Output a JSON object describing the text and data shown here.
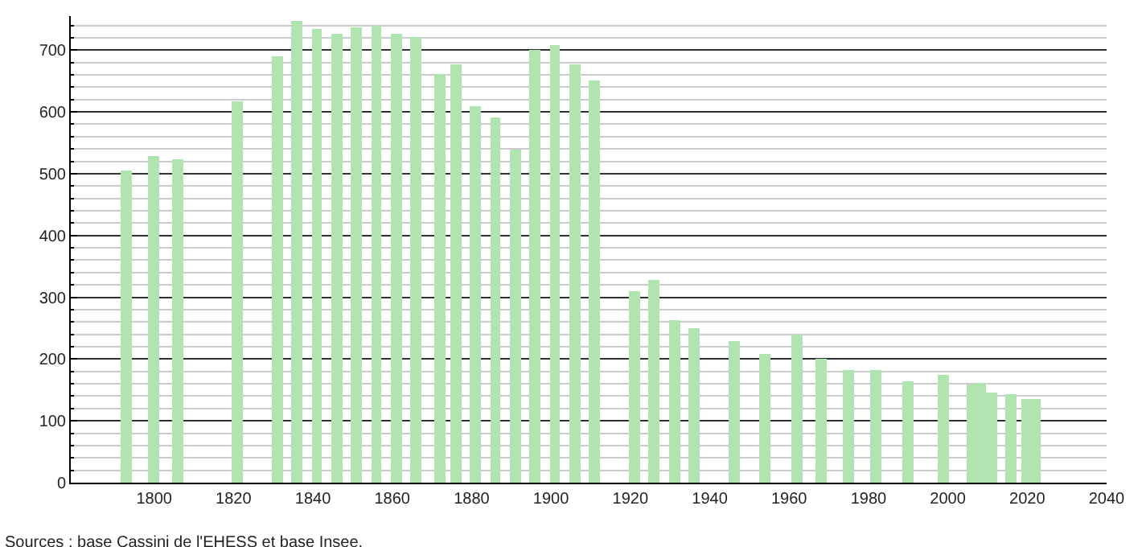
{
  "chart_data": {
    "type": "bar",
    "x": [
      1793,
      1800,
      1806,
      1821,
      1831,
      1836,
      1841,
      1846,
      1851,
      1856,
      1861,
      1866,
      1872,
      1876,
      1881,
      1886,
      1891,
      1896,
      1901,
      1906,
      1911,
      1921,
      1926,
      1931,
      1936,
      1946,
      1954,
      1962,
      1968,
      1975,
      1982,
      1990,
      1999,
      2006,
      2008,
      2011,
      2016,
      2020,
      2022
    ],
    "values": [
      505,
      529,
      523,
      617,
      690,
      748,
      735,
      727,
      737,
      740,
      727,
      722,
      660,
      676,
      610,
      592,
      540,
      700,
      709,
      677,
      651,
      310,
      328,
      263,
      249,
      229,
      208,
      240,
      200,
      181,
      181,
      165,
      174,
      160,
      162,
      145,
      143,
      136,
      135
    ],
    "color": "#b0e4b0",
    "xlim": [
      1779,
      2040
    ],
    "xticks": [
      1800,
      1820,
      1840,
      1860,
      1880,
      1900,
      1920,
      1940,
      1960,
      1980,
      2000,
      2020,
      2040
    ],
    "ylim": [
      0,
      755
    ],
    "yticks": [
      0,
      100,
      200,
      300,
      400,
      500,
      600,
      700
    ],
    "grid": "y",
    "annotations": [
      "Sources : base Cassini de l'EHESS et base Insee."
    ]
  }
}
